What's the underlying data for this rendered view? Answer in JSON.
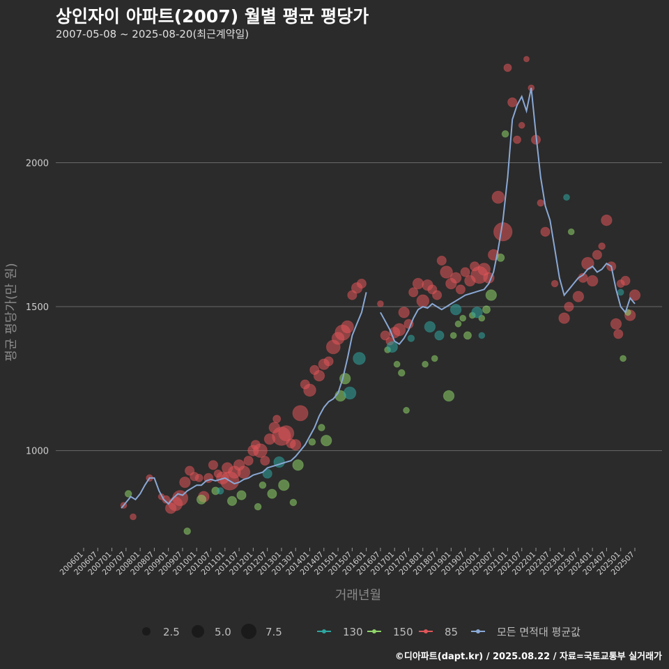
{
  "title": "상인자이 아파트(2007) 월별 평균 평당가",
  "subtitle": "2007-05-08 ~ 2025-08-20(최근계약일)",
  "credit": "©디아파트(dapt.kr) / 2025.08.22 / 자료=국토교통부 실거래가",
  "colors": {
    "bg": "#2b2b2b",
    "grid": "#6a6a6a",
    "s130": "#2fa6a0",
    "s150": "#8fd46a",
    "s85": "#e0565a",
    "avg": "#8aa9d6"
  },
  "chart_data": {
    "type": "scatter+line",
    "xlabel": "거래년월",
    "ylabel": "평균 평당가(만 원)",
    "ylim": [
      665,
      2420
    ],
    "yticks": [
      1000,
      1500,
      2000
    ],
    "x_ticks": [
      "200601",
      "200607",
      "200701",
      "200707",
      "200801",
      "200807",
      "200901",
      "200907",
      "201001",
      "201007",
      "201101",
      "201107",
      "201201",
      "201207",
      "201301",
      "201307",
      "201401",
      "201407",
      "201501",
      "201507",
      "201601",
      "201607",
      "201701",
      "201707",
      "201801",
      "201807",
      "201901",
      "201907",
      "202001",
      "202007",
      "202101",
      "202107",
      "202201",
      "202207",
      "202301",
      "202307",
      "202401",
      "202407",
      "202501",
      "202507"
    ],
    "size_legend": [
      2.5,
      5.0,
      7.5
    ],
    "series_legend": [
      "130",
      "150",
      "85",
      "모든 면적대 평균값"
    ],
    "average_line": [
      [
        "2007-05",
        800
      ],
      [
        "2007-07",
        820
      ],
      [
        "2007-09",
        840
      ],
      [
        "2007-11",
        830
      ],
      [
        "2008-01",
        850
      ],
      [
        "2008-03",
        880
      ],
      [
        "2008-05",
        905
      ],
      [
        "2008-07",
        905
      ],
      [
        "2008-09",
        860
      ],
      [
        "2008-11",
        830
      ],
      [
        "2009-01",
        815
      ],
      [
        "2009-03",
        835
      ],
      [
        "2009-05",
        850
      ],
      [
        "2009-07",
        845
      ],
      [
        "2009-09",
        860
      ],
      [
        "2009-11",
        870
      ],
      [
        "2010-01",
        880
      ],
      [
        "2010-03",
        880
      ],
      [
        "2010-05",
        895
      ],
      [
        "2010-07",
        900
      ],
      [
        "2010-09",
        895
      ],
      [
        "2010-11",
        900
      ],
      [
        "2011-01",
        905
      ],
      [
        "2011-03",
        895
      ],
      [
        "2011-05",
        885
      ],
      [
        "2011-07",
        890
      ],
      [
        "2011-09",
        900
      ],
      [
        "2011-11",
        905
      ],
      [
        "2012-01",
        915
      ],
      [
        "2012-03",
        920
      ],
      [
        "2012-05",
        925
      ],
      [
        "2012-07",
        940
      ],
      [
        "2012-09",
        945
      ],
      [
        "2012-11",
        950
      ],
      [
        "2013-01",
        955
      ],
      [
        "2013-03",
        960
      ],
      [
        "2013-05",
        965
      ],
      [
        "2013-07",
        980
      ],
      [
        "2013-09",
        1000
      ],
      [
        "2013-11",
        1020
      ],
      [
        "2014-01",
        1050
      ],
      [
        "2014-03",
        1080
      ],
      [
        "2014-05",
        1120
      ],
      [
        "2014-07",
        1150
      ],
      [
        "2014-09",
        1170
      ],
      [
        "2014-11",
        1180
      ],
      [
        "2015-01",
        1200
      ],
      [
        "2015-03",
        1250
      ],
      [
        "2015-05",
        1320
      ],
      [
        "2015-07",
        1400
      ],
      [
        "2015-09",
        1440
      ],
      [
        "2015-11",
        1480
      ],
      [
        "2016-01",
        1550
      ],
      null,
      [
        "2016-07",
        1480
      ],
      [
        "2016-09",
        1450
      ],
      [
        "2016-11",
        1420
      ],
      [
        "2017-01",
        1380
      ],
      [
        "2017-03",
        1370
      ],
      [
        "2017-05",
        1390
      ],
      [
        "2017-07",
        1420
      ],
      [
        "2017-09",
        1460
      ],
      [
        "2017-11",
        1490
      ],
      [
        "2018-01",
        1500
      ],
      [
        "2018-03",
        1495
      ],
      [
        "2018-05",
        1510
      ],
      [
        "2018-07",
        1500
      ],
      [
        "2018-09",
        1490
      ],
      [
        "2018-11",
        1500
      ],
      [
        "2019-01",
        1510
      ],
      [
        "2019-03",
        1520
      ],
      [
        "2019-05",
        1530
      ],
      [
        "2019-07",
        1540
      ],
      [
        "2019-09",
        1545
      ],
      [
        "2019-11",
        1550
      ],
      [
        "2020-01",
        1555
      ],
      [
        "2020-03",
        1560
      ],
      [
        "2020-05",
        1580
      ],
      [
        "2020-07",
        1620
      ],
      [
        "2020-09",
        1700
      ],
      [
        "2020-11",
        1800
      ],
      [
        "2021-01",
        1950
      ],
      [
        "2021-03",
        2150
      ],
      [
        "2021-05",
        2200
      ],
      [
        "2021-07",
        2230
      ],
      [
        "2021-09",
        2180
      ],
      [
        "2021-11",
        2260
      ],
      [
        "2022-01",
        2100
      ],
      [
        "2022-03",
        1950
      ],
      [
        "2022-05",
        1850
      ],
      [
        "2022-07",
        1800
      ],
      [
        "2022-09",
        1700
      ],
      [
        "2022-11",
        1600
      ],
      [
        "2023-01",
        1540
      ],
      [
        "2023-03",
        1560
      ],
      [
        "2023-05",
        1580
      ],
      [
        "2023-07",
        1600
      ],
      [
        "2023-09",
        1610
      ],
      [
        "2023-11",
        1630
      ],
      [
        "2024-01",
        1640
      ],
      [
        "2024-03",
        1620
      ],
      [
        "2024-05",
        1630
      ],
      [
        "2024-07",
        1650
      ],
      [
        "2024-09",
        1640
      ],
      [
        "2024-11",
        1560
      ],
      [
        "2025-01",
        1500
      ],
      [
        "2025-03",
        1480
      ],
      [
        "2025-05",
        1530
      ],
      [
        "2025-07",
        1510
      ]
    ],
    "series": [
      {
        "name": "85",
        "points": [
          [
            "2007-06",
            810,
            1.0
          ],
          [
            "2007-10",
            770,
            1.0
          ],
          [
            "2008-05",
            905,
            1.2
          ],
          [
            "2008-10",
            840,
            1.0
          ],
          [
            "2008-12",
            830,
            1.5
          ],
          [
            "2009-02",
            800,
            2.5
          ],
          [
            "2009-04",
            815,
            3.5
          ],
          [
            "2009-06",
            835,
            4.0
          ],
          [
            "2009-08",
            890,
            2.5
          ],
          [
            "2009-10",
            930,
            2.0
          ],
          [
            "2009-12",
            910,
            1.8
          ],
          [
            "2010-02",
            905,
            1.5
          ],
          [
            "2010-04",
            840,
            2.5
          ],
          [
            "2010-06",
            905,
            2.0
          ],
          [
            "2010-08",
            950,
            2.0
          ],
          [
            "2010-10",
            920,
            1.5
          ],
          [
            "2010-12",
            905,
            3.0
          ],
          [
            "2011-02",
            940,
            2.5
          ],
          [
            "2011-03",
            895,
            5.0
          ],
          [
            "2011-05",
            925,
            3.0
          ],
          [
            "2011-07",
            950,
            2.5
          ],
          [
            "2011-09",
            925,
            3.0
          ],
          [
            "2011-11",
            965,
            2.0
          ],
          [
            "2012-01",
            1000,
            2.5
          ],
          [
            "2012-02",
            1020,
            2.0
          ],
          [
            "2012-04",
            1000,
            3.5
          ],
          [
            "2012-06",
            965,
            2.0
          ],
          [
            "2012-08",
            1040,
            2.5
          ],
          [
            "2012-10",
            1080,
            2.5
          ],
          [
            "2012-11",
            1110,
            1.5
          ],
          [
            "2013-01",
            1050,
            5.0
          ],
          [
            "2013-03",
            1060,
            4.0
          ],
          [
            "2013-05",
            1025,
            2.0
          ],
          [
            "2013-07",
            1020,
            2.5
          ],
          [
            "2013-09",
            1130,
            4.0
          ],
          [
            "2013-11",
            1230,
            2.0
          ],
          [
            "2014-01",
            1210,
            3.0
          ],
          [
            "2014-03",
            1280,
            2.0
          ],
          [
            "2014-05",
            1260,
            2.5
          ],
          [
            "2014-07",
            1300,
            2.5
          ],
          [
            "2014-09",
            1310,
            2.0
          ],
          [
            "2014-11",
            1360,
            3.5
          ],
          [
            "2015-01",
            1390,
            3.0
          ],
          [
            "2015-03",
            1410,
            4.0
          ],
          [
            "2015-05",
            1430,
            3.0
          ],
          [
            "2015-07",
            1540,
            2.0
          ],
          [
            "2015-09",
            1565,
            2.5
          ],
          [
            "2015-11",
            1580,
            2.0
          ],
          [
            "2016-07",
            1510,
            1.0
          ],
          [
            "2016-09",
            1400,
            2.0
          ],
          [
            "2016-11",
            1380,
            1.5
          ],
          [
            "2017-01",
            1410,
            2.5
          ],
          [
            "2017-03",
            1420,
            3.0
          ],
          [
            "2017-05",
            1480,
            2.5
          ],
          [
            "2017-07",
            1440,
            2.0
          ],
          [
            "2017-09",
            1550,
            2.0
          ],
          [
            "2017-11",
            1580,
            2.5
          ],
          [
            "2018-01",
            1520,
            3.0
          ],
          [
            "2018-03",
            1575,
            2.5
          ],
          [
            "2018-05",
            1560,
            2.0
          ],
          [
            "2018-07",
            1540,
            2.0
          ],
          [
            "2018-09",
            1660,
            2.0
          ],
          [
            "2018-11",
            1620,
            3.0
          ],
          [
            "2019-01",
            1580,
            2.5
          ],
          [
            "2019-03",
            1600,
            2.5
          ],
          [
            "2019-05",
            1560,
            2.0
          ],
          [
            "2019-07",
            1620,
            2.0
          ],
          [
            "2019-09",
            1590,
            2.5
          ],
          [
            "2019-11",
            1640,
            2.0
          ],
          [
            "2020-01",
            1610,
            4.5
          ],
          [
            "2020-03",
            1630,
            3.0
          ],
          [
            "2020-05",
            1600,
            2.5
          ],
          [
            "2020-07",
            1680,
            2.5
          ],
          [
            "2020-09",
            1880,
            3.0
          ],
          [
            "2020-11",
            1760,
            5.0
          ],
          [
            "2021-01",
            2330,
            1.5
          ],
          [
            "2021-03",
            2210,
            2.0
          ],
          [
            "2021-05",
            2080,
            1.5
          ],
          [
            "2021-07",
            2130,
            1.0
          ],
          [
            "2021-09",
            2360,
            0.8
          ],
          [
            "2021-11",
            2260,
            1.0
          ],
          [
            "2022-01",
            2080,
            2.0
          ],
          [
            "2022-03",
            1860,
            1.2
          ],
          [
            "2022-05",
            1760,
            2.0
          ],
          [
            "2022-09",
            1580,
            1.2
          ],
          [
            "2023-01",
            1460,
            2.5
          ],
          [
            "2023-03",
            1500,
            2.0
          ],
          [
            "2023-07",
            1535,
            2.5
          ],
          [
            "2023-09",
            1600,
            2.0
          ],
          [
            "2023-11",
            1650,
            3.0
          ],
          [
            "2024-01",
            1590,
            2.5
          ],
          [
            "2024-03",
            1680,
            2.0
          ],
          [
            "2024-05",
            1710,
            1.2
          ],
          [
            "2024-07",
            1800,
            2.5
          ],
          [
            "2024-09",
            1640,
            2.0
          ],
          [
            "2024-11",
            1440,
            2.5
          ],
          [
            "2024-12",
            1405,
            2.0
          ],
          [
            "2025-01",
            1580,
            1.5
          ],
          [
            "2025-03",
            1590,
            2.0
          ],
          [
            "2025-05",
            1470,
            2.5
          ],
          [
            "2025-07",
            1540,
            2.5
          ]
        ]
      },
      {
        "name": "150",
        "points": [
          [
            "2007-08",
            850,
            1.2
          ],
          [
            "2009-09",
            720,
            1.2
          ],
          [
            "2010-03",
            830,
            2.0
          ],
          [
            "2010-09",
            860,
            1.5
          ],
          [
            "2011-04",
            825,
            2.0
          ],
          [
            "2011-08",
            845,
            2.0
          ],
          [
            "2012-03",
            805,
            1.2
          ],
          [
            "2012-05",
            880,
            1.2
          ],
          [
            "2012-09",
            850,
            2.0
          ],
          [
            "2013-02",
            880,
            2.5
          ],
          [
            "2013-06",
            820,
            1.2
          ],
          [
            "2013-08",
            950,
            2.5
          ],
          [
            "2014-02",
            1030,
            1.2
          ],
          [
            "2014-06",
            1080,
            1.2
          ],
          [
            "2014-08",
            1035,
            2.5
          ],
          [
            "2015-02",
            1190,
            2.5
          ],
          [
            "2015-04",
            1250,
            2.5
          ],
          [
            "2016-10",
            1350,
            1.0
          ],
          [
            "2017-02",
            1300,
            1.0
          ],
          [
            "2017-04",
            1270,
            1.2
          ],
          [
            "2017-06",
            1140,
            1.0
          ],
          [
            "2018-02",
            1300,
            1.0
          ],
          [
            "2018-06",
            1320,
            1.0
          ],
          [
            "2018-12",
            1190,
            2.5
          ],
          [
            "2019-02",
            1400,
            1.0
          ],
          [
            "2019-04",
            1440,
            1.0
          ],
          [
            "2019-06",
            1460,
            1.0
          ],
          [
            "2019-08",
            1400,
            1.5
          ],
          [
            "2019-10",
            1470,
            1.0
          ],
          [
            "2020-02",
            1460,
            1.0
          ],
          [
            "2020-04",
            1490,
            1.5
          ],
          [
            "2020-06",
            1540,
            2.5
          ],
          [
            "2020-10",
            1670,
            1.5
          ],
          [
            "2020-12",
            2100,
            1.2
          ],
          [
            "2023-04",
            1760,
            1.0
          ],
          [
            "2025-02",
            1320,
            1.0
          ],
          [
            "2025-04",
            1480,
            1.0
          ]
        ]
      },
      {
        "name": "130",
        "points": [
          [
            "2010-11",
            860,
            1.2
          ],
          [
            "2012-07",
            920,
            2.0
          ],
          [
            "2012-12",
            960,
            2.5
          ],
          [
            "2015-06",
            1200,
            3.0
          ],
          [
            "2015-10",
            1320,
            3.0
          ],
          [
            "2016-12",
            1360,
            2.5
          ],
          [
            "2017-08",
            1390,
            1.2
          ],
          [
            "2018-04",
            1430,
            2.5
          ],
          [
            "2018-08",
            1400,
            2.0
          ],
          [
            "2019-03",
            1490,
            2.5
          ],
          [
            "2019-12",
            1480,
            2.5
          ],
          [
            "2020-02",
            1400,
            1.0
          ],
          [
            "2023-02",
            1880,
            1.0
          ],
          [
            "2025-01",
            1550,
            1.0
          ]
        ]
      }
    ]
  }
}
